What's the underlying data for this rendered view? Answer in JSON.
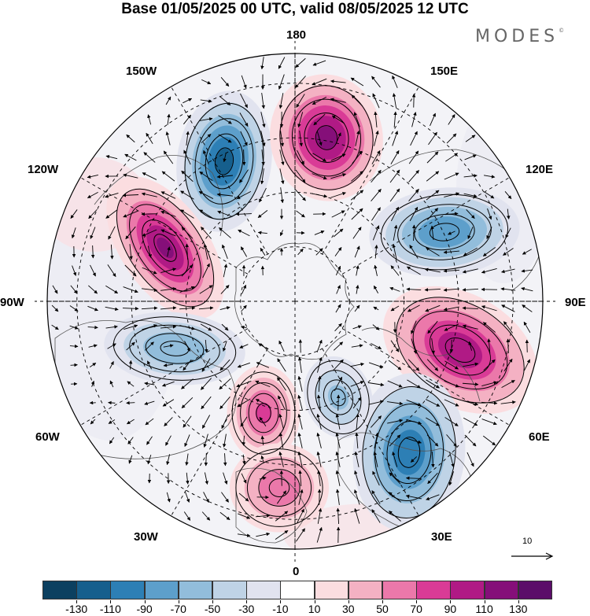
{
  "title": "Base 01/05/2025 00 UTC, valid 08/05/2025 12 UTC",
  "brand": "MODES",
  "brand_mark": "©",
  "longitude_labels": {
    "top": "180",
    "bottom": "0",
    "left": "90W",
    "right": "90E",
    "upper_left": "150W",
    "upper_right": "150E",
    "mid_upper_left": "120W",
    "mid_upper_right": "120E",
    "mid_lower_left": "60W",
    "mid_lower_right": "60E",
    "lower_left": "30W",
    "lower_right": "30E"
  },
  "reference_vector": {
    "label": "10"
  },
  "colorbar": {
    "tick_labels": [
      "-130",
      "-110",
      "-90",
      "-70",
      "-50",
      "-30",
      "-10",
      "10",
      "30",
      "50",
      "70",
      "90",
      "110",
      "130"
    ],
    "colors": [
      "#0c4060",
      "#165f8d",
      "#2d7fb5",
      "#5d9fcb",
      "#92bddb",
      "#bfd3e6",
      "#e1e3ef",
      "#ffffff",
      "#fbdde0",
      "#f4b1c3",
      "#eb78aa",
      "#d93b96",
      "#b01a85",
      "#850f79",
      "#5b0d69"
    ]
  },
  "anomaly_centers": [
    {
      "sign": "negative",
      "value": -120
    },
    {
      "sign": "positive",
      "value": 120
    },
    {
      "sign": "positive",
      "value": 115
    },
    {
      "sign": "negative",
      "value": -90
    },
    {
      "sign": "positive",
      "value": 110
    },
    {
      "sign": "negative",
      "value": -70
    },
    {
      "sign": "negative",
      "value": -110
    },
    {
      "sign": "positive",
      "value": 75
    },
    {
      "sign": "positive",
      "value": 65
    },
    {
      "sign": "negative",
      "value": -55
    }
  ]
}
